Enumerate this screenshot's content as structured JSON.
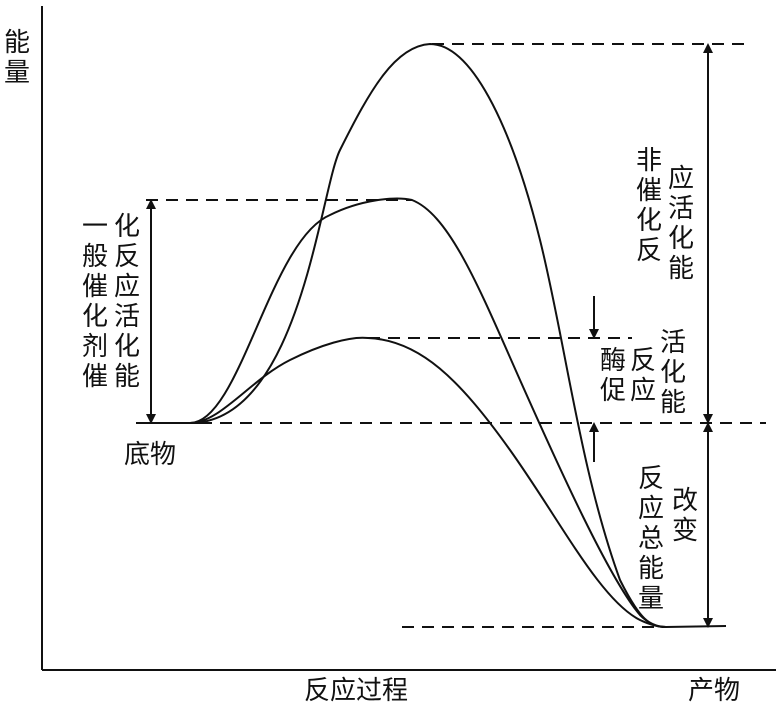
{
  "axis": {
    "y_label": "能量",
    "x_label": "反应过程",
    "product_label": "产物"
  },
  "labels": {
    "substrate": "底物",
    "general_catalyst_line1": "一般催化剂催",
    "general_catalyst_line2": "化反应活化能",
    "enzyme_line1": "酶促",
    "enzyme_line2": "反应",
    "enzyme_line3": "活化能",
    "uncatalyzed_line1": "非催化反",
    "uncatalyzed_line2": "应活化能",
    "total_change_line1": "反应总能量",
    "total_change_line2": "改变"
  },
  "curves": [
    "uncatalyzed",
    "general-catalyst",
    "enzyme"
  ],
  "colors": {
    "line": "#111111",
    "background": "#ffffff"
  }
}
